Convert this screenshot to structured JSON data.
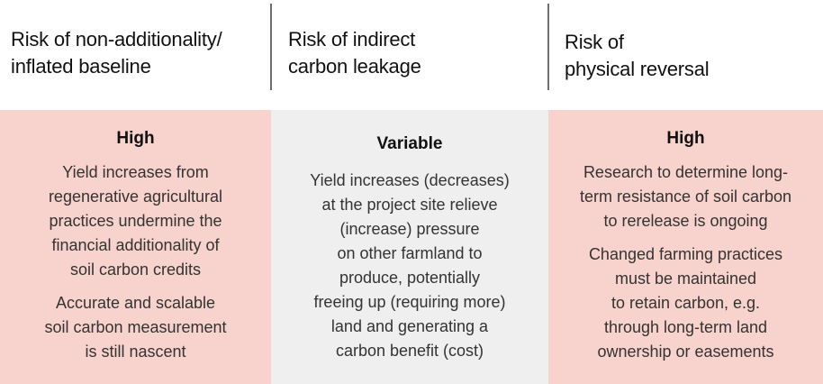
{
  "colors": {
    "high_panel_bg": "#f8d2cc",
    "variable_panel_bg": "#efefef",
    "divider": "#6e6e6e"
  },
  "columns": [
    {
      "header_lines": [
        "Risk of non-additionality/",
        "inflated baseline"
      ],
      "level": "High",
      "paragraphs": [
        [
          "Yield increases from",
          "regenerative agricultural",
          "practices undermine the",
          "financial additionality of",
          "soil carbon credits"
        ],
        [
          "Accurate and scalable",
          "soil carbon measurement",
          "is still nascent"
        ]
      ]
    },
    {
      "header_lines": [
        "Risk of indirect",
        "carbon leakage"
      ],
      "level": "Variable",
      "paragraphs": [
        [
          "Yield increases (decreases)",
          "at the project site relieve",
          "(increase) pressure",
          "on other farmland to",
          "produce, potentially",
          "freeing up (requiring more)",
          "land and generating a",
          "carbon benefit (cost)"
        ]
      ]
    },
    {
      "header_lines": [
        "Risk of",
        "physical reversal"
      ],
      "level": "High",
      "paragraphs": [
        [
          "Research to determine long-",
          "term resistance of soil carbon",
          "to rerelease is ongoing"
        ],
        [
          "Changed farming practices",
          "must be maintained",
          "to retain carbon, e.g.",
          "through long-term land",
          "ownership or easements"
        ]
      ]
    }
  ]
}
